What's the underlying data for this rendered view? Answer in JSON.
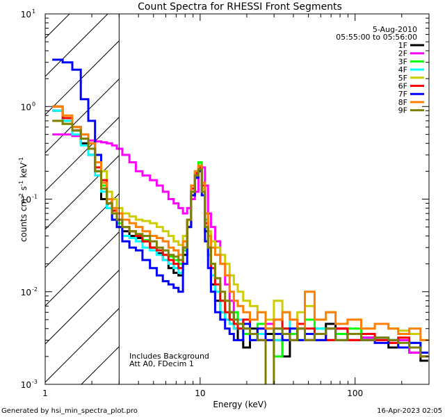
{
  "chart_data": {
    "type": "line",
    "title": "Count Spectra for RHESSI Front Segments",
    "xlabel": "Energy (keV)",
    "ylabel_parts": {
      "base": "counts cm",
      "exp1": "-2",
      "mid": " s",
      "exp2": "-1",
      "unit": " keV",
      "exp3": "-1"
    },
    "xscale": "log",
    "yscale": "log",
    "xlim": [
      1,
      300
    ],
    "ylim": [
      0.001,
      10
    ],
    "x_ticks": [
      {
        "v": 1,
        "label": "1"
      },
      {
        "v": 10,
        "label": "10"
      },
      {
        "v": 100,
        "label": "100"
      }
    ],
    "y_ticks": [
      {
        "v": 0.001,
        "base": "10",
        "exp": "-3"
      },
      {
        "v": 0.01,
        "base": "10",
        "exp": "-2"
      },
      {
        "v": 0.1,
        "base": "10",
        "exp": "-1"
      },
      {
        "v": 1,
        "base": "10",
        "exp": "0"
      },
      {
        "v": 10,
        "base": "10",
        "exp": "1"
      }
    ],
    "hatched_region_x": [
      1,
      3
    ],
    "date": "5-Aug-2010",
    "time_range": "05:55:00 to 05:56:00",
    "annotation_lines": [
      "Includes Background",
      "Att A0, FDecim 1"
    ],
    "footer_left": "Generated by hsi_min_spectra_plot.pro",
    "footer_right": "16-Apr-2023 02:05",
    "series": [
      {
        "name": "1F",
        "color": "#000000",
        "x": [
          1.2,
          1.4,
          1.6,
          1.8,
          2.0,
          2.2,
          2.4,
          2.6,
          2.8,
          3.0,
          3.3,
          3.7,
          4.0,
          4.5,
          5.0,
          5.5,
          6.0,
          6.5,
          7.0,
          7.5,
          8.0,
          8.5,
          9.0,
          9.5,
          10.0,
          10.5,
          11.0,
          11.5,
          12.0,
          13,
          14,
          15,
          16,
          17,
          18,
          20,
          22,
          25,
          28,
          32,
          36,
          40,
          45,
          50,
          60,
          70,
          80,
          100,
          120,
          150,
          180,
          200,
          250,
          280
        ],
        "y": [
          0.9,
          0.7,
          0.55,
          0.4,
          0.3,
          0.2,
          0.1,
          0.08,
          0.06,
          0.05,
          0.045,
          0.04,
          0.038,
          0.035,
          0.03,
          0.026,
          0.022,
          0.018,
          0.016,
          0.015,
          0.025,
          0.05,
          0.11,
          0.17,
          0.2,
          0.12,
          0.045,
          0.025,
          0.012,
          0.008,
          0.006,
          0.005,
          0.006,
          0.004,
          0.003,
          0.0025,
          0.004,
          0.003,
          0.0035,
          0.003,
          0.002,
          0.003,
          0.004,
          0.003,
          0.003,
          0.0045,
          0.004,
          0.003,
          0.0032,
          0.003,
          0.0025,
          0.003,
          0.0022,
          0.0018
        ]
      },
      {
        "name": "2F",
        "color": "#ff00ff",
        "x": [
          1.2,
          1.4,
          1.6,
          1.8,
          2.0,
          2.2,
          2.4,
          2.6,
          2.8,
          3.0,
          3.3,
          3.7,
          4.0,
          4.5,
          5.0,
          5.5,
          6.0,
          6.5,
          7.0,
          7.5,
          8.0,
          8.5,
          9.0,
          9.5,
          10.0,
          10.5,
          11.0,
          11.5,
          12.0,
          13,
          14,
          15,
          16,
          17,
          18,
          20,
          22,
          25,
          28,
          32,
          36,
          40,
          45,
          50,
          60,
          70,
          80,
          100,
          120,
          150,
          180,
          200,
          250,
          280
        ],
        "y": [
          0.5,
          0.5,
          0.48,
          0.45,
          0.43,
          0.42,
          0.41,
          0.4,
          0.38,
          0.35,
          0.3,
          0.25,
          0.2,
          0.18,
          0.16,
          0.14,
          0.12,
          0.1,
          0.09,
          0.08,
          0.07,
          0.08,
          0.1,
          0.12,
          0.2,
          0.22,
          0.14,
          0.07,
          0.05,
          0.035,
          0.02,
          0.012,
          0.008,
          0.006,
          0.005,
          0.004,
          0.0035,
          0.003,
          0.0045,
          0.004,
          0.003,
          0.005,
          0.004,
          0.003,
          0.0035,
          0.003,
          0.004,
          0.003,
          0.0032,
          0.003,
          0.0028,
          0.003,
          0.0022,
          0.002
        ]
      },
      {
        "name": "3F",
        "color": "#00ff00",
        "x": [
          1.2,
          1.4,
          1.6,
          1.8,
          2.0,
          2.2,
          2.4,
          2.6,
          2.8,
          3.0,
          3.3,
          3.7,
          4.0,
          4.5,
          5.0,
          5.5,
          6.0,
          6.5,
          7.0,
          7.5,
          8.0,
          8.5,
          9.0,
          9.5,
          10.0,
          10.5,
          11.0,
          11.5,
          12.0,
          13,
          14,
          15,
          16,
          17,
          18,
          20,
          22,
          25,
          28,
          32,
          36,
          40,
          45,
          50,
          60,
          70,
          80,
          100,
          120,
          150,
          180,
          200,
          250,
          280
        ],
        "y": [
          1.0,
          0.75,
          0.6,
          0.45,
          0.4,
          0.2,
          0.14,
          0.1,
          0.07,
          0.055,
          0.05,
          0.045,
          0.04,
          0.036,
          0.03,
          0.028,
          0.025,
          0.024,
          0.022,
          0.02,
          0.028,
          0.06,
          0.14,
          0.2,
          0.25,
          0.15,
          0.06,
          0.03,
          0.02,
          0.012,
          0.008,
          0.006,
          0.005,
          0.006,
          0.004,
          0.0035,
          0.003,
          0.0045,
          0.004,
          0.002,
          0.004,
          0.0035,
          0.003,
          0.005,
          0.004,
          0.003,
          0.0035,
          0.004,
          0.003,
          0.0032,
          0.003,
          0.0025,
          0.0028,
          0.0022
        ]
      },
      {
        "name": "4F",
        "color": "#00ffff",
        "x": [
          1.2,
          1.4,
          1.6,
          1.8,
          2.0,
          2.2,
          2.4,
          2.6,
          2.8,
          3.0,
          3.3,
          3.7,
          4.0,
          4.5,
          5.0,
          5.5,
          6.0,
          6.5,
          7.0,
          7.5,
          8.0,
          8.5,
          9.0,
          9.5,
          10.0,
          10.5,
          11.0,
          11.5,
          12.0,
          13,
          14,
          15,
          16,
          17,
          18,
          20,
          22,
          25,
          28,
          32,
          36,
          40,
          45,
          50,
          60,
          70,
          80,
          100,
          120,
          150,
          180,
          200,
          250,
          280
        ],
        "y": [
          0.9,
          0.7,
          0.5,
          0.38,
          0.3,
          0.18,
          0.12,
          0.08,
          0.06,
          0.05,
          0.04,
          0.038,
          0.035,
          0.03,
          0.028,
          0.025,
          0.022,
          0.02,
          0.018,
          0.016,
          0.03,
          0.06,
          0.12,
          0.18,
          0.21,
          0.12,
          0.05,
          0.025,
          0.015,
          0.01,
          0.006,
          0.005,
          0.0045,
          0.004,
          0.005,
          0.004,
          0.003,
          0.0035,
          0.004,
          0.003,
          0.006,
          0.004,
          0.003,
          0.0035,
          0.004,
          0.003,
          0.003,
          0.0035,
          0.003,
          0.0032,
          0.003,
          0.0025,
          0.0028,
          0.002
        ]
      },
      {
        "name": "5F",
        "color": "#cccc00",
        "x": [
          1.2,
          1.4,
          1.6,
          1.8,
          2.0,
          2.2,
          2.4,
          2.6,
          2.8,
          3.0,
          3.3,
          3.7,
          4.0,
          4.5,
          5.0,
          5.5,
          6.0,
          6.5,
          7.0,
          7.5,
          8.0,
          8.5,
          9.0,
          9.5,
          10.0,
          10.5,
          11.0,
          11.5,
          12.0,
          13,
          14,
          15,
          16,
          17,
          18,
          20,
          22,
          25,
          28,
          32,
          36,
          40,
          45,
          50,
          60,
          70,
          80,
          100,
          120,
          150,
          180,
          200,
          250,
          280
        ],
        "y": [
          0.7,
          0.65,
          0.6,
          0.5,
          0.4,
          0.3,
          0.2,
          0.12,
          0.1,
          0.08,
          0.07,
          0.065,
          0.06,
          0.058,
          0.055,
          0.05,
          0.045,
          0.04,
          0.035,
          0.032,
          0.04,
          0.06,
          0.12,
          0.18,
          0.2,
          0.13,
          0.07,
          0.045,
          0.035,
          0.03,
          0.025,
          0.02,
          0.015,
          0.012,
          0.01,
          0.008,
          0.007,
          0.006,
          0.005,
          0.008,
          0.006,
          0.005,
          0.006,
          0.007,
          0.005,
          0.006,
          0.0045,
          0.005,
          0.004,
          0.0045,
          0.004,
          0.0038,
          0.0035,
          0.003
        ]
      },
      {
        "name": "6F",
        "color": "#ff0000",
        "x": [
          1.2,
          1.4,
          1.6,
          1.8,
          2.0,
          2.2,
          2.4,
          2.6,
          2.8,
          3.0,
          3.3,
          3.7,
          4.0,
          4.5,
          5.0,
          5.5,
          6.0,
          6.5,
          7.0,
          7.5,
          8.0,
          8.5,
          9.0,
          9.5,
          10.0,
          10.5,
          11.0,
          11.5,
          12.0,
          13,
          14,
          15,
          16,
          17,
          18,
          20,
          22,
          25,
          28,
          32,
          36,
          40,
          45,
          50,
          60,
          70,
          80,
          100,
          120,
          150,
          180,
          200,
          250,
          280
        ],
        "y": [
          1.0,
          0.75,
          0.6,
          0.45,
          0.35,
          0.22,
          0.16,
          0.1,
          0.075,
          0.06,
          0.05,
          0.045,
          0.04,
          0.035,
          0.03,
          0.028,
          0.025,
          0.022,
          0.02,
          0.018,
          0.03,
          0.06,
          0.13,
          0.19,
          0.22,
          0.14,
          0.055,
          0.03,
          0.018,
          0.012,
          0.008,
          0.006,
          0.005,
          0.0045,
          0.004,
          0.005,
          0.0035,
          0.004,
          0.003,
          0.005,
          0.004,
          0.003,
          0.0045,
          0.004,
          0.0035,
          0.003,
          0.004,
          0.003,
          0.0035,
          0.003,
          0.0028,
          0.0032,
          0.0025,
          0.002
        ]
      },
      {
        "name": "7F",
        "color": "#0000ff",
        "x": [
          1.2,
          1.4,
          1.6,
          1.8,
          2.0,
          2.2,
          2.4,
          2.6,
          2.8,
          3.0,
          3.3,
          3.7,
          4.0,
          4.5,
          5.0,
          5.5,
          6.0,
          6.5,
          7.0,
          7.5,
          8.0,
          8.5,
          9.0,
          9.5,
          10.0,
          10.5,
          11.0,
          11.5,
          12.0,
          13,
          14,
          15,
          16,
          17,
          18,
          20,
          22,
          25,
          28,
          32,
          36,
          40,
          45,
          50,
          60,
          70,
          80,
          100,
          120,
          150,
          180,
          200,
          250,
          280
        ],
        "y": [
          3.2,
          3.0,
          2.5,
          1.2,
          0.7,
          0.3,
          0.15,
          0.09,
          0.06,
          0.05,
          0.035,
          0.03,
          0.028,
          0.022,
          0.018,
          0.015,
          0.013,
          0.012,
          0.011,
          0.01,
          0.02,
          0.05,
          0.11,
          0.17,
          0.2,
          0.11,
          0.035,
          0.018,
          0.01,
          0.006,
          0.005,
          0.004,
          0.0035,
          0.003,
          0.003,
          0.0045,
          0.003,
          0.004,
          0.003,
          0.0035,
          0.003,
          0.004,
          0.003,
          0.0035,
          0.003,
          0.004,
          0.003,
          0.0035,
          0.003,
          0.0028,
          0.003,
          0.0025,
          0.0028,
          0.0022
        ]
      },
      {
        "name": "8F",
        "color": "#ff7f00",
        "x": [
          1.2,
          1.4,
          1.6,
          1.8,
          2.0,
          2.2,
          2.4,
          2.6,
          2.8,
          3.0,
          3.3,
          3.7,
          4.0,
          4.5,
          5.0,
          5.5,
          6.0,
          6.5,
          7.0,
          7.5,
          8.0,
          8.5,
          9.0,
          9.5,
          10.0,
          10.5,
          11.0,
          11.5,
          12.0,
          13,
          14,
          15,
          16,
          17,
          18,
          20,
          22,
          25,
          28,
          32,
          36,
          40,
          45,
          50,
          60,
          70,
          80,
          100,
          120,
          150,
          180,
          200,
          250,
          280
        ],
        "y": [
          1.0,
          0.8,
          0.6,
          0.5,
          0.4,
          0.25,
          0.15,
          0.1,
          0.08,
          0.07,
          0.06,
          0.055,
          0.05,
          0.045,
          0.04,
          0.038,
          0.035,
          0.03,
          0.028,
          0.025,
          0.035,
          0.06,
          0.14,
          0.2,
          0.23,
          0.15,
          0.07,
          0.04,
          0.03,
          0.025,
          0.02,
          0.015,
          0.01,
          0.008,
          0.007,
          0.006,
          0.005,
          0.006,
          0.004,
          0.005,
          0.006,
          0.005,
          0.004,
          0.01,
          0.005,
          0.006,
          0.0045,
          0.005,
          0.004,
          0.0045,
          0.004,
          0.0035,
          0.004,
          0.003
        ]
      },
      {
        "name": "9F",
        "color": "#808000",
        "x": [
          1.2,
          1.4,
          1.6,
          1.8,
          2.0,
          2.2,
          2.4,
          2.6,
          2.8,
          3.0,
          3.3,
          3.7,
          4.0,
          4.5,
          5.0,
          5.5,
          6.0,
          6.5,
          7.0,
          7.5,
          8.0,
          8.5,
          9.0,
          9.5,
          10.0,
          10.5,
          11.0,
          11.5,
          12.0,
          13,
          14,
          15,
          16,
          17,
          18,
          20,
          22,
          25,
          28,
          32,
          36,
          40,
          45,
          50,
          60,
          70,
          80,
          100,
          120,
          150,
          180,
          200,
          250,
          280
        ],
        "y": [
          0.7,
          0.65,
          0.55,
          0.45,
          0.35,
          0.2,
          0.13,
          0.09,
          0.07,
          0.06,
          0.05,
          0.045,
          0.042,
          0.04,
          0.035,
          0.03,
          0.028,
          0.025,
          0.024,
          0.022,
          0.03,
          0.06,
          0.12,
          0.18,
          0.21,
          0.12,
          0.05,
          0.03,
          0.02,
          0.014,
          0.01,
          0.008,
          0.006,
          0.005,
          0.0045,
          0.004,
          0.0035,
          0.003,
          0.0008,
          0.004,
          0.0035,
          0.003,
          0.004,
          0.003,
          0.0035,
          0.004,
          0.003,
          0.0035,
          0.003,
          0.0032,
          0.003,
          0.0028,
          0.0025,
          0.002
        ]
      }
    ]
  }
}
